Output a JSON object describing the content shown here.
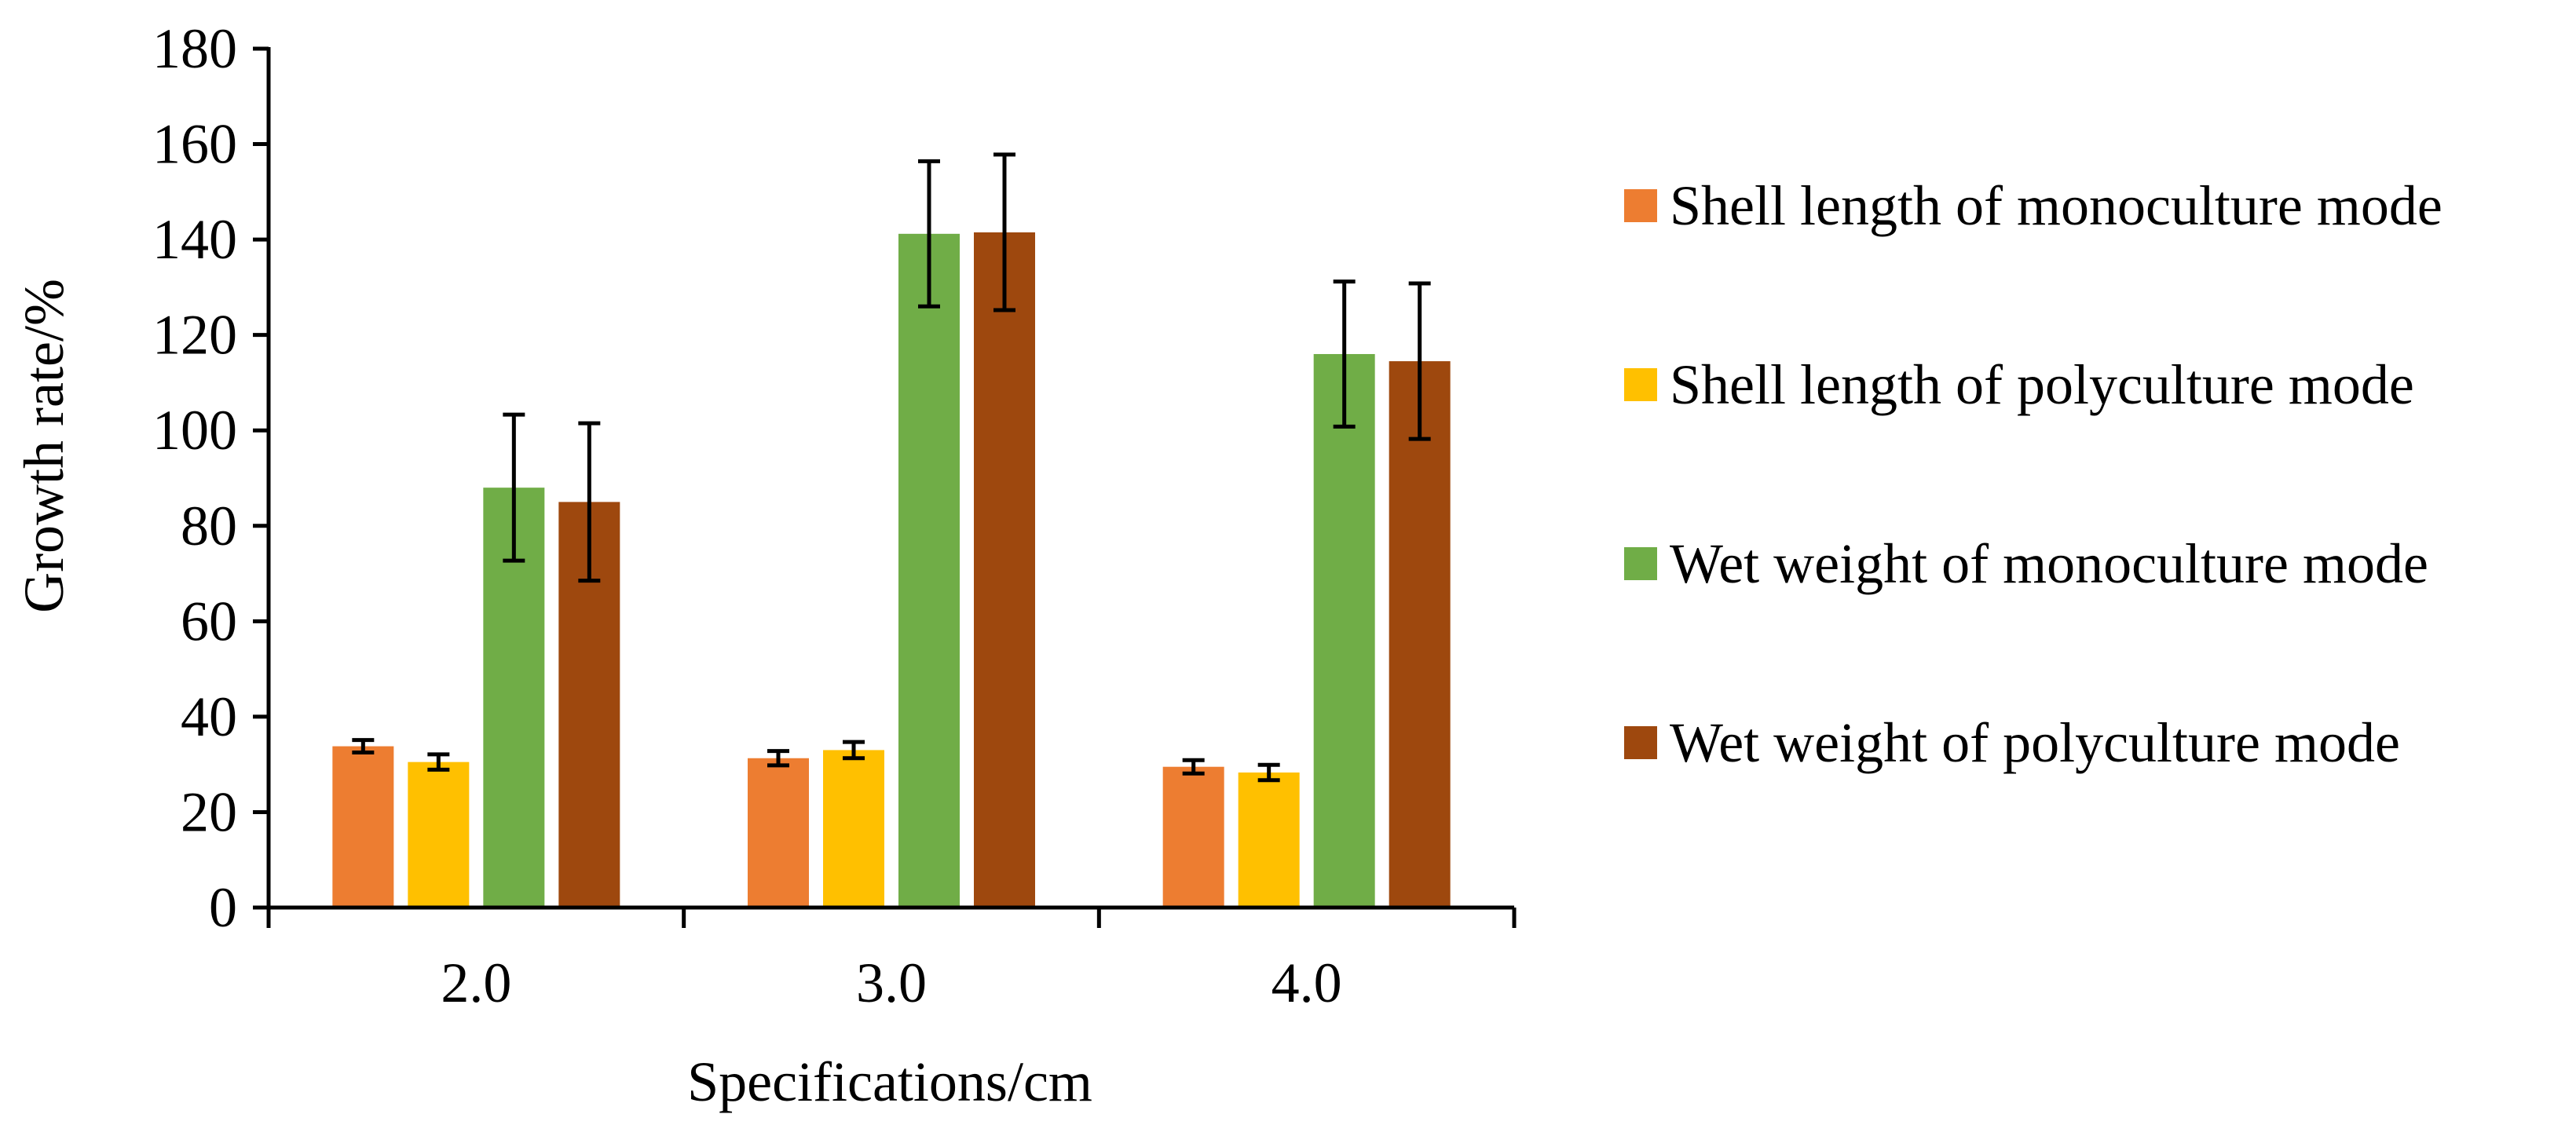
{
  "chart_data": {
    "type": "bar",
    "title": "",
    "xlabel": "Specifications/cm",
    "ylabel": "Growth rate/%",
    "ylim": [
      0,
      180
    ],
    "yticks": [
      "0",
      "20",
      "40",
      "60",
      "80",
      "100",
      "120",
      "140",
      "160",
      "180"
    ],
    "categories": [
      "2.0",
      "3.0",
      "4.0"
    ],
    "grid": false,
    "legend_position": "right",
    "series": [
      {
        "name": "Shell length of monoculture mode",
        "color": "#ED7D31",
        "values": [
          33.8,
          31.3,
          29.5
        ],
        "errors": [
          1.3,
          1.5,
          1.4
        ]
      },
      {
        "name": "Shell length of polyculture mode",
        "color": "#FFC000",
        "values": [
          30.5,
          33.0,
          28.3
        ],
        "errors": [
          1.6,
          1.7,
          1.6
        ]
      },
      {
        "name": "Wet weight of monoculture mode",
        "color": "#70AD47",
        "values": [
          88.0,
          141.2,
          116.0
        ],
        "errors": [
          15.3,
          15.2,
          15.2
        ]
      },
      {
        "name": "Wet weight of polyculture mode",
        "color": "#9E480E",
        "values": [
          85.0,
          141.5,
          114.5
        ],
        "errors": [
          16.5,
          16.3,
          16.3
        ]
      }
    ]
  }
}
